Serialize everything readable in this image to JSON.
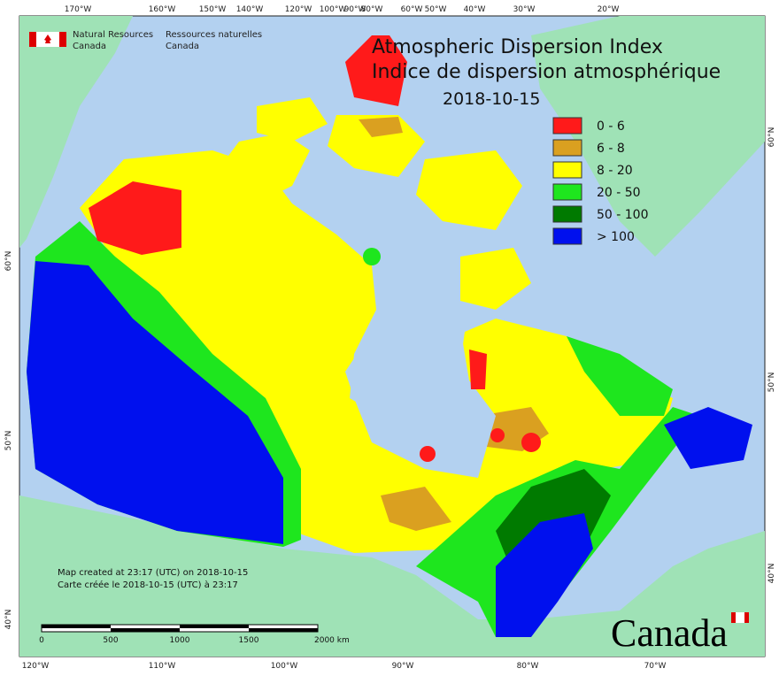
{
  "header": {
    "nrcan_en_1": "Natural Resources",
    "nrcan_en_2": "Canada",
    "nrcan_fr_1": "Ressources naturelles",
    "nrcan_fr_2": "Canada"
  },
  "title": {
    "line1": "Atmospheric Dispersion Index",
    "line2": "Indice de dispersion atmosphérique",
    "date": "2018-10-15"
  },
  "legend": [
    {
      "label": "0 - 6",
      "color": "#ff1a1a"
    },
    {
      "label": "6 - 8",
      "color": "#daa020"
    },
    {
      "label": "8 - 20",
      "color": "#ffff00"
    },
    {
      "label": "20 - 50",
      "color": "#1ee61e"
    },
    {
      "label": "50 - 100",
      "color": "#007a00"
    },
    {
      "label": "> 100",
      "color": "#0010ee"
    }
  ],
  "graticule": {
    "top": [
      "170°W",
      "160°W",
      "150°W",
      "140°W",
      "120°W",
      "100°W",
      "90°W",
      "80°W",
      "60°W",
      "50°W",
      "40°W",
      "30°W",
      "20°W"
    ],
    "bottom": [
      "120°W",
      "110°W",
      "100°W",
      "90°W",
      "80°W",
      "70°W"
    ],
    "left": [
      "60°N",
      "50°N",
      "40°N"
    ],
    "right": [
      "60°N",
      "50°N",
      "40°N"
    ]
  },
  "notes": {
    "created_en": "Map created at 23:17 (UTC) on 2018-10-15",
    "created_fr": "Carte créée le 2018-10-15 (UTC) à 23:17"
  },
  "scale_bar": [
    "0",
    "500",
    "1000",
    "1500",
    "2000 km"
  ],
  "wordmark": "Canada"
}
